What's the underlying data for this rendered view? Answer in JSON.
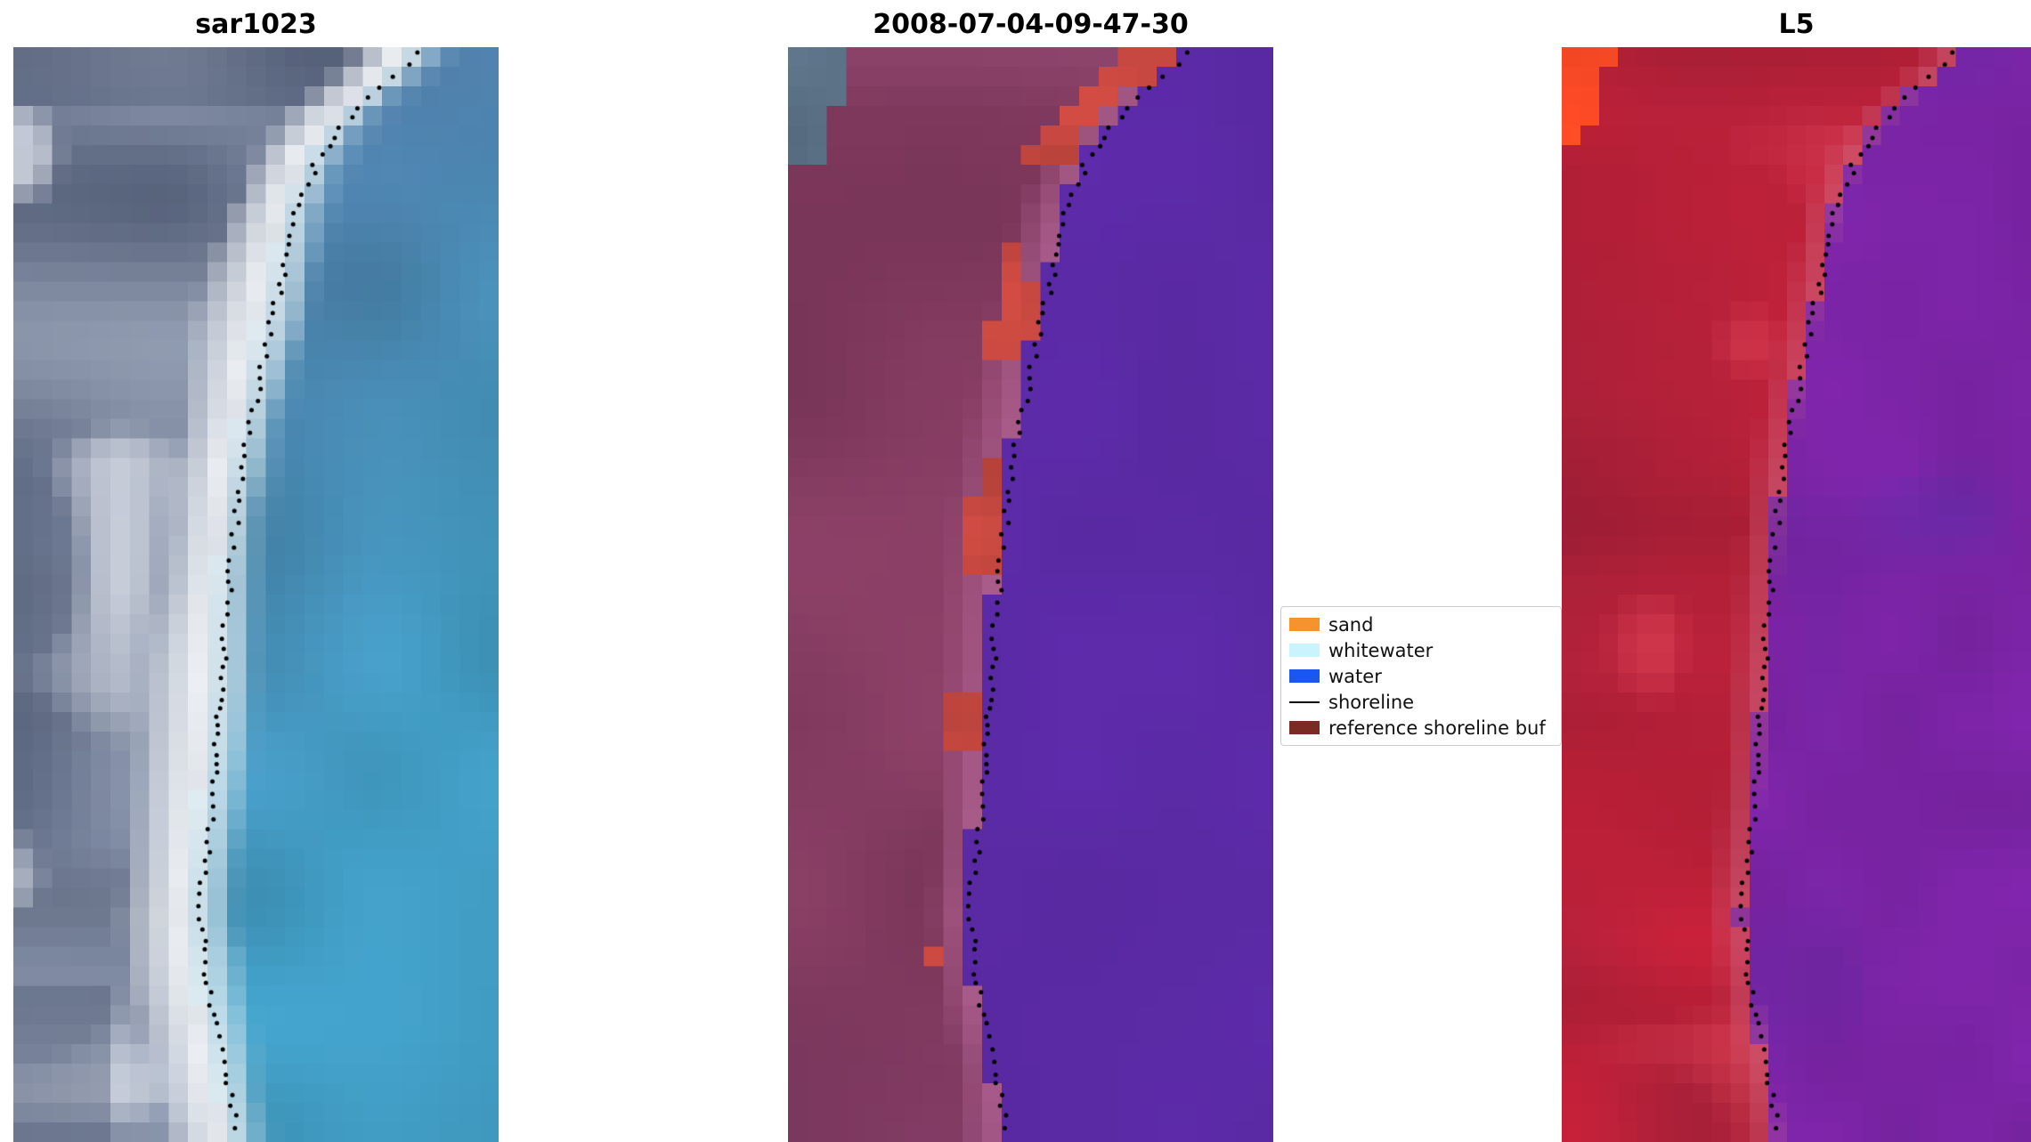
{
  "figure": {
    "background": "#ffffff",
    "panels": [
      {
        "id": "sar1023",
        "title": "sar1023"
      },
      {
        "id": "classified",
        "title": "2008-07-04-09-47-30"
      },
      {
        "id": "l5",
        "title": "L5"
      }
    ],
    "legend": {
      "items": [
        {
          "label": "sand",
          "swatch": "#f5942e",
          "kind": "patch"
        },
        {
          "label": "whitewater",
          "swatch": "#c9f4fe",
          "kind": "patch"
        },
        {
          "label": "water",
          "swatch": "#1a56f0",
          "kind": "patch"
        },
        {
          "label": "shoreline",
          "swatch": "#000000",
          "kind": "line"
        },
        {
          "label": "reference shoreline buf",
          "swatch": "#7c2a24",
          "kind": "patch"
        }
      ]
    }
  },
  "chart_data": {
    "type": "image-panels",
    "panel_titles": [
      "sar1023",
      "2008-07-04-09-47-30",
      "L5"
    ],
    "legend_entries": [
      "sand",
      "whitewater",
      "water",
      "shoreline",
      "reference shoreline buf"
    ],
    "shoreline": {
      "style": "dotted black markers running down each panel along the land/water boundary",
      "points_tx": [
        [
          0.0,
          0.85
        ],
        [
          0.03,
          0.78
        ],
        [
          0.06,
          0.7
        ],
        [
          0.1,
          0.63
        ],
        [
          0.15,
          0.585
        ],
        [
          0.22,
          0.548
        ],
        [
          0.32,
          0.5
        ],
        [
          0.41,
          0.462
        ],
        [
          0.52,
          0.44
        ],
        [
          0.64,
          0.42
        ],
        [
          0.72,
          0.402
        ],
        [
          0.79,
          0.382
        ],
        [
          0.86,
          0.402
        ],
        [
          0.93,
          0.438
        ],
        [
          1.0,
          0.462
        ]
      ]
    },
    "panels": [
      {
        "title": "sar1023",
        "kind": "sar-composite",
        "description": "grey-blue coastal scene: slate mottled land on the left, bright white surf/beach band curving down-left, teal-blue ocean on the right, dotted black shoreline on the band/water edge",
        "palette": {
          "land_dark": "#4a5570",
          "land_light": "#98a3b8",
          "cloud": "#d2d7e1",
          "surf": "#f3f6f8",
          "water_near": "#a6cbda",
          "water_top": "#4d7aa4",
          "water_deep": "#3f97bd"
        }
      },
      {
        "title": "2008-07-04-09-47-30",
        "kind": "classification",
        "description": "classified scene: maroon-magenta reference-shoreline-buffer land, brick-red sand patches hugging the shoreline, flat indigo-purple water, small grey patch in top-left corner, dotted shoreline",
        "palette": {
          "water": "#5b2aa6",
          "land": "#8e4168",
          "land_dark": "#713152",
          "land_deep": "#7c3a6a",
          "band": "#b16394",
          "sand": "#c4473f",
          "corner": "#5b7186"
        },
        "sand_patches": [
          {
            "t": [
              0.0,
              0.105
            ],
            "d": [
              -0.13,
              -0.02
            ]
          },
          {
            "t": [
              0.145,
              0.305
            ],
            "d": [
              -0.085,
              0.0
            ]
          },
          {
            "t": [
              0.375,
              0.485
            ],
            "d": [
              -0.06,
              0.005
            ]
          },
          {
            "t": [
              0.585,
              0.645
            ],
            "d": [
              -0.065,
              0.0
            ]
          },
          {
            "t": [
              0.79,
              0.84
            ],
            "d": [
              -0.095,
              -0.03
            ]
          }
        ]
      },
      {
        "title": "L5",
        "kind": "false-color",
        "description": "false-colour Landsat-5 scene: crimson-red land, bright orange patch in top-left corner, violet-purple water with darker indigo blobs, dotted shoreline",
        "palette": {
          "land": "#c22038",
          "land_dark": "#9d2038",
          "land_light": "#dd4256",
          "band": "#d06682",
          "water": "#7b24a6",
          "water_dark": "#5431aa",
          "corner": "#ff4b26"
        }
      }
    ]
  }
}
